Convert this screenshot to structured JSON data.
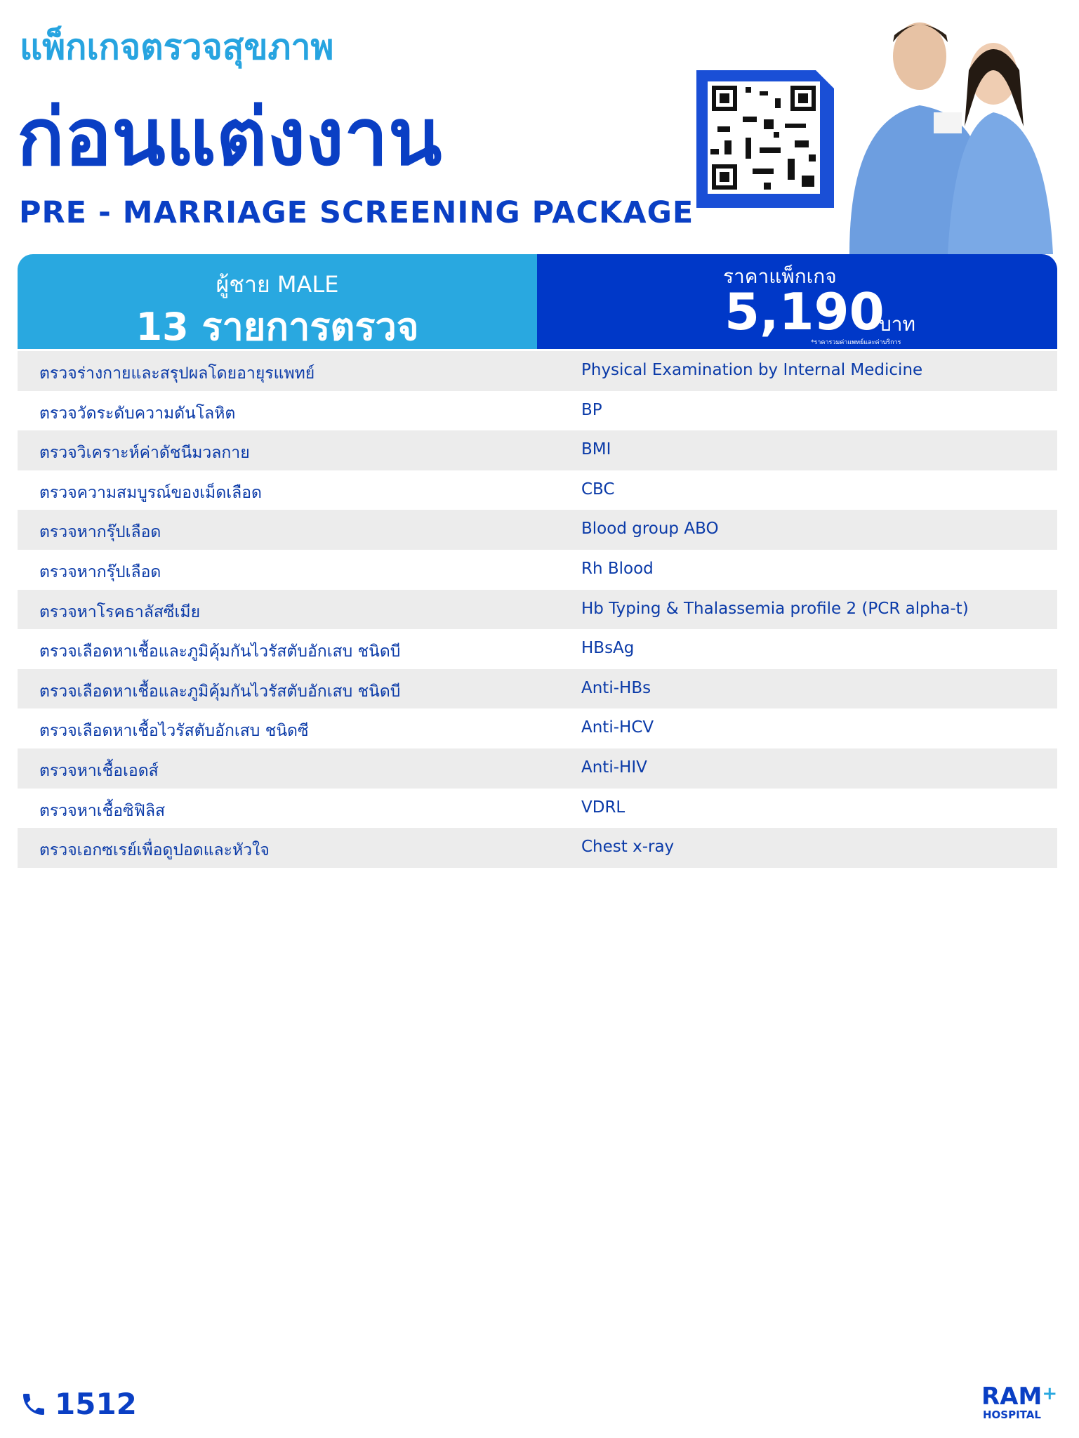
{
  "header": {
    "subtitle": "แพ็กเกจตรวจสุขภาพ",
    "title": "ก่อนแต่งงาน",
    "english": "PRE - MARRIAGE SCREENING PACKAGE"
  },
  "summary": {
    "gender": "ผู้ชาย MALE",
    "count_label": "13 รายการตรวจ",
    "price_label": "ราคาแพ็กเกจ",
    "price": "5,190",
    "currency": "บาท",
    "note": "*ราคารวมค่าแพทย์และค่าบริการ"
  },
  "table": {
    "rows": [
      [
        "ตรวจร่างกายและสรุปผลโดยอายุรแพทย์",
        "Physical Examination by Internal Medicine"
      ],
      [
        "ตรวจวัดระดับความดันโลหิต",
        "BP"
      ],
      [
        "ตรวจวิเคราะห์ค่าดัชนีมวลกาย",
        "BMI"
      ],
      [
        "ตรวจความสมบูรณ์ของเม็ดเลือด",
        "CBC"
      ],
      [
        "ตรวจหากรุ๊ปเลือด",
        "Blood group ABO"
      ],
      [
        "ตรวจหากรุ๊ปเลือด",
        "Rh Blood"
      ],
      [
        "ตรวจหาโรคธาลัสซีเมีย",
        "Hb Typing & Thalassemia profile 2 (PCR alpha-t)"
      ],
      [
        "ตรวจเลือดหาเชื้อและภูมิคุ้มกันไวรัสตับอักเสบ ชนิดบี",
        "HBsAg"
      ],
      [
        "ตรวจเลือดหาเชื้อและภูมิคุ้มกันไวรัสตับอักเสบ ชนิดบี",
        "Anti-HBs"
      ],
      [
        "ตรวจเลือดหาเชื้อไวรัสตับอักเสบ ชนิดซี",
        "Anti-HCV"
      ],
      [
        "ตรวจหาเชื้อเอดส์",
        "Anti-HIV"
      ],
      [
        "ตรวจหาเชื้อซิฟิลิส",
        "VDRL"
      ],
      [
        "ตรวจเอกซเรย์เพื่อดูปอดและหัวใจ",
        "Chest x-ray"
      ]
    ]
  },
  "footer": {
    "phone": "1512",
    "logo": "RAM",
    "logo_sub": "HOSPITAL"
  }
}
